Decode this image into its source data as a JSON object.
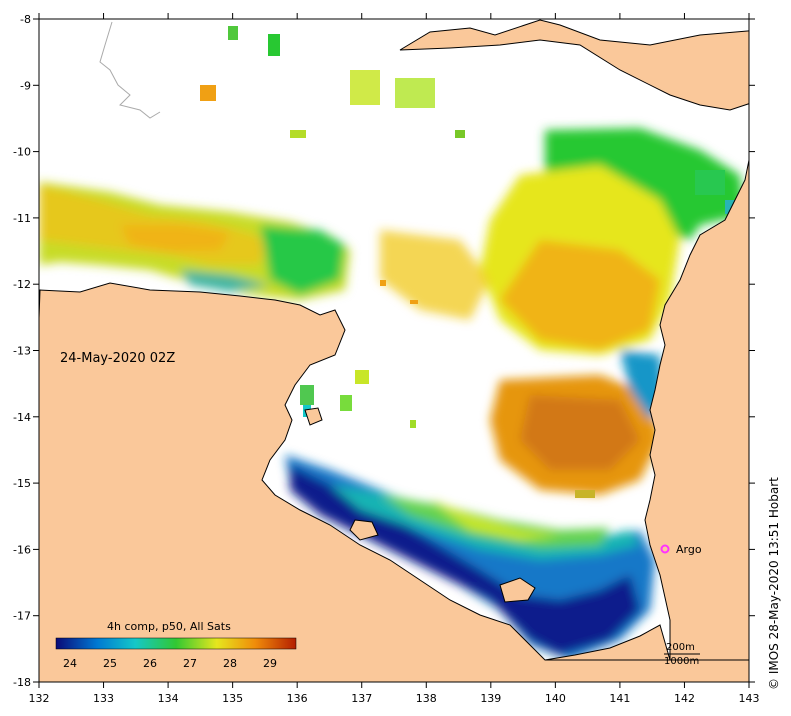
{
  "map": {
    "date_label": "24-May-2020 02Z",
    "credit": "© IMOS 28-May-2020 13:51 Hobart",
    "x_axis": {
      "ticks": [
        "132",
        "133",
        "134",
        "135",
        "136",
        "137",
        "138",
        "139",
        "140",
        "141",
        "142",
        "143"
      ]
    },
    "y_axis": {
      "ticks": [
        "-8",
        "-9",
        "-10",
        "-11",
        "-12",
        "-13",
        "-14",
        "-15",
        "-16",
        "-17",
        "-18"
      ]
    },
    "colorbar": {
      "title": "4h comp, p50, All Sats",
      "ticks": [
        "24",
        "25",
        "26",
        "27",
        "28",
        "29"
      ],
      "colors": {
        "c24": "#0a0a78",
        "c25": "#0078d2",
        "c26": "#14c8c8",
        "c27": "#32c832",
        "c28": "#e6e61e",
        "c29": "#f08c0a",
        "c30": "#b41e00"
      }
    },
    "argo": {
      "label": "Argo",
      "marker_color": "#ff33ff"
    },
    "scale": {
      "label_200": "200m",
      "label_1000": "1000m"
    },
    "colors": {
      "land": "#fac89a",
      "sea_no_data": "#ffffff",
      "coastline": "#000000"
    }
  }
}
